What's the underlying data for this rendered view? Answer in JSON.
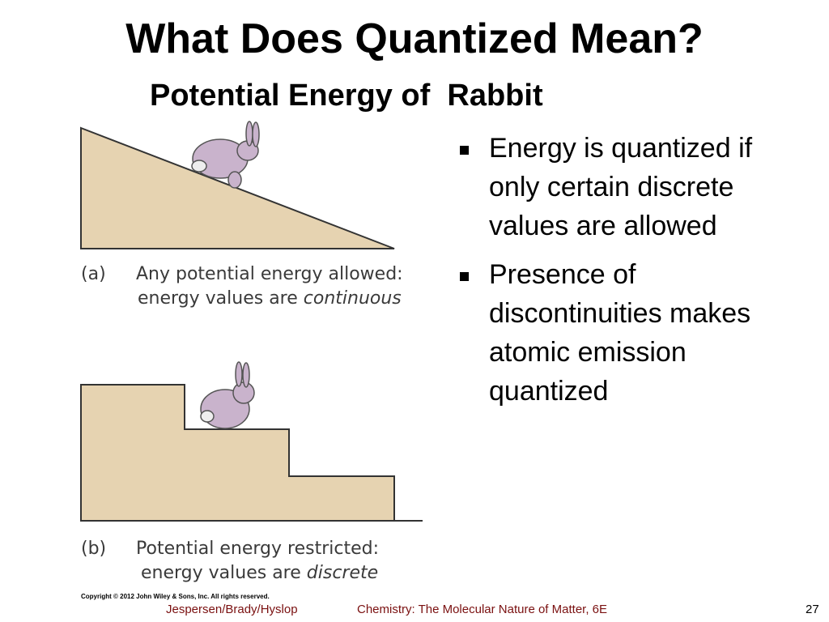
{
  "title": "What Does Quantized Mean?",
  "subtitle": "Potential Energy of  Rabbit",
  "figure_a": {
    "label": "(a)",
    "line1": "Any potential energy allowed:",
    "line2_prefix": "energy values are",
    "line2_emphasis": "continuous"
  },
  "figure_b": {
    "label": "(b)",
    "line1": "Potential energy restricted:",
    "line2_prefix": "energy values are",
    "line2_emphasis": "discrete"
  },
  "copyright": "Copyright © 2012 John Wiley & Sons, Inc. All rights reserved.",
  "bullets": [
    [
      "Energy is quantized if",
      "only certain discrete",
      "values are allowed"
    ],
    [
      "Presence of",
      "discontinuities makes",
      "atomic emission",
      "quantized"
    ]
  ],
  "footer": {
    "authors": "Jespersen/Brady/Hyslop",
    "book": "Chemistry: The Molecular Nature of Matter, 6E",
    "page": "27"
  }
}
